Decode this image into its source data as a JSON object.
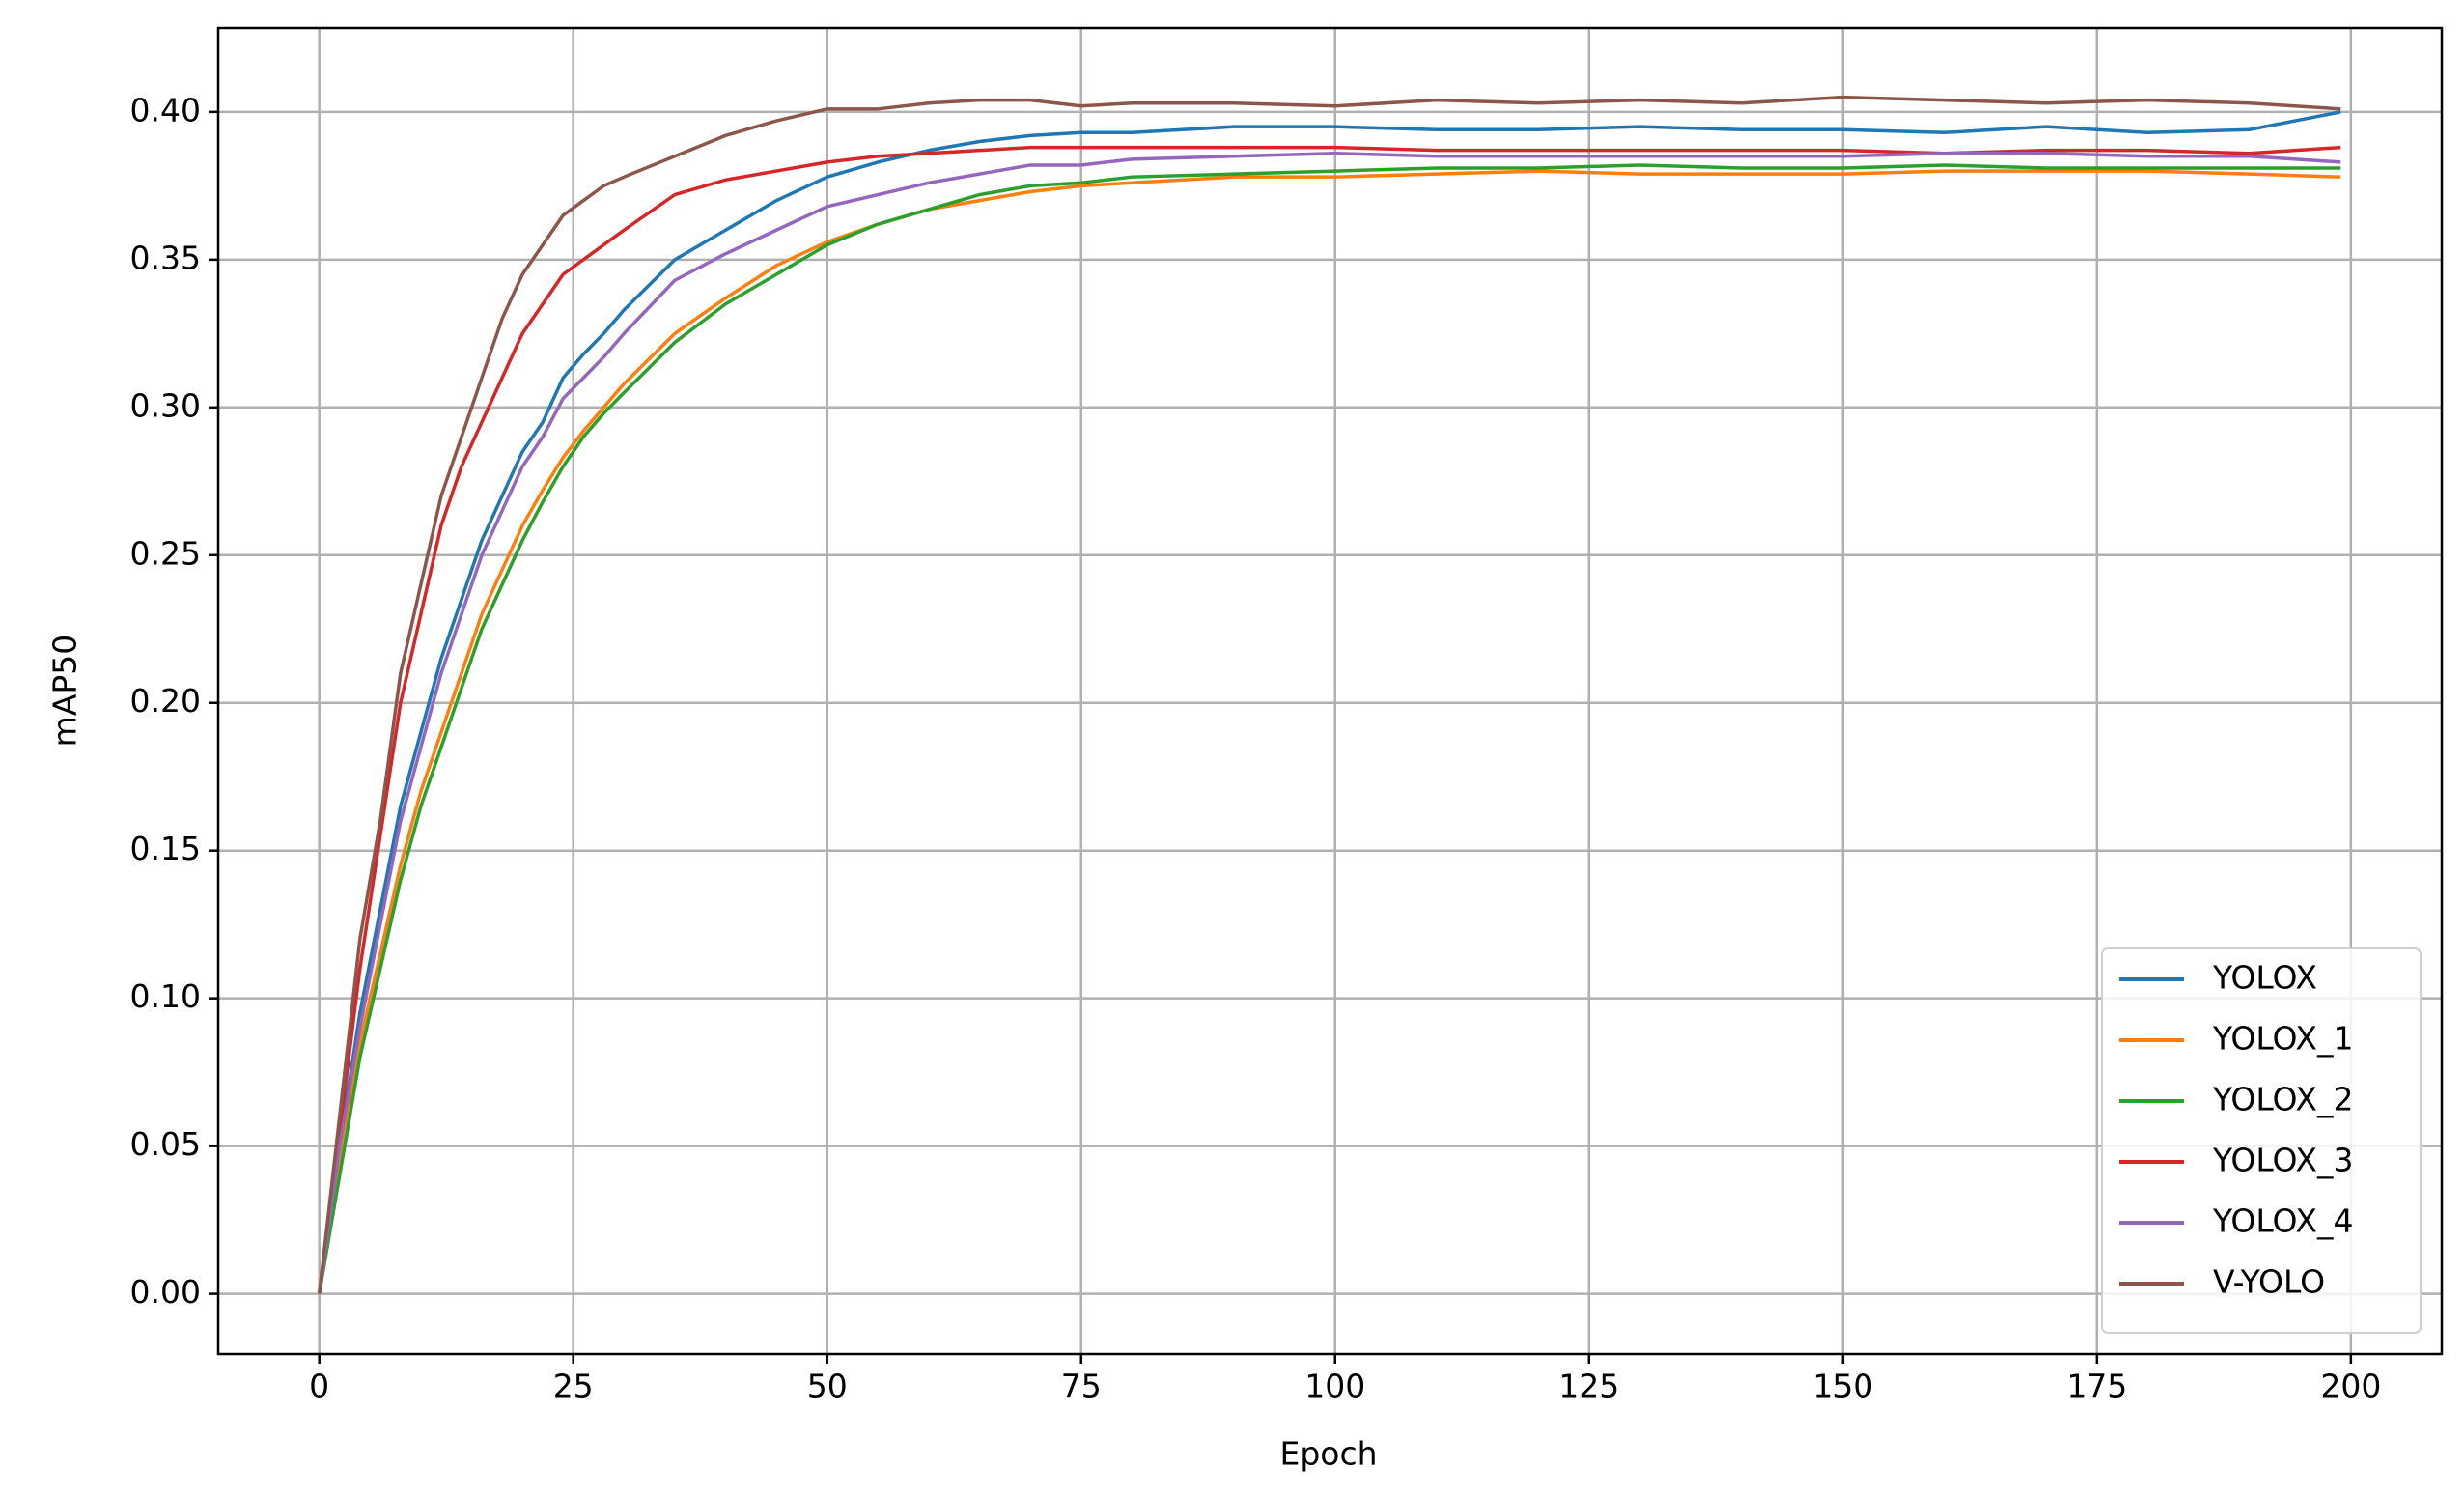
{
  "chart_data": {
    "type": "line",
    "x_label": "Epoch",
    "y_label": "mAP50",
    "x": [
      0,
      2,
      4,
      6,
      8,
      10,
      12,
      14,
      16,
      18,
      20,
      22,
      24,
      26,
      28,
      30,
      35,
      40,
      45,
      50,
      55,
      60,
      65,
      70,
      75,
      80,
      90,
      100,
      110,
      120,
      130,
      140,
      150,
      160,
      170,
      180,
      190,
      199
    ],
    "series": [
      {
        "name": "YOLOX",
        "color": "#1f77b4",
        "values": [
          0,
          0.05,
          0.095,
          0.13,
          0.165,
          0.19,
          0.215,
          0.235,
          0.255,
          0.27,
          0.285,
          0.295,
          0.31,
          0.318,
          0.325,
          0.333,
          0.35,
          0.36,
          0.37,
          0.378,
          0.383,
          0.387,
          0.39,
          0.392,
          0.393,
          0.393,
          0.395,
          0.395,
          0.394,
          0.394,
          0.395,
          0.394,
          0.394,
          0.393,
          0.395,
          0.393,
          0.394,
          0.4
        ]
      },
      {
        "name": "YOLOX_1",
        "color": "#ff7f0e",
        "values": [
          0,
          0.045,
          0.085,
          0.115,
          0.145,
          0.17,
          0.19,
          0.21,
          0.23,
          0.245,
          0.26,
          0.272,
          0.283,
          0.292,
          0.3,
          0.308,
          0.325,
          0.337,
          0.348,
          0.356,
          0.362,
          0.367,
          0.37,
          0.373,
          0.375,
          0.376,
          0.378,
          0.378,
          0.379,
          0.38,
          0.379,
          0.379,
          0.379,
          0.38,
          0.38,
          0.38,
          0.379,
          0.378
        ]
      },
      {
        "name": "YOLOX_2",
        "color": "#2ca02c",
        "values": [
          0,
          0.04,
          0.08,
          0.11,
          0.14,
          0.165,
          0.185,
          0.205,
          0.225,
          0.24,
          0.255,
          0.268,
          0.28,
          0.29,
          0.298,
          0.305,
          0.322,
          0.335,
          0.345,
          0.355,
          0.362,
          0.367,
          0.372,
          0.375,
          0.376,
          0.378,
          0.379,
          0.38,
          0.381,
          0.381,
          0.382,
          0.381,
          0.381,
          0.382,
          0.381,
          0.381,
          0.381,
          0.381
        ]
      },
      {
        "name": "YOLOX_3",
        "color": "#d62728",
        "values": [
          0,
          0.055,
          0.11,
          0.155,
          0.2,
          0.23,
          0.26,
          0.28,
          0.295,
          0.31,
          0.325,
          0.335,
          0.345,
          0.35,
          0.355,
          0.36,
          0.372,
          0.377,
          0.38,
          0.383,
          0.385,
          0.386,
          0.387,
          0.388,
          0.388,
          0.388,
          0.388,
          0.388,
          0.387,
          0.387,
          0.387,
          0.387,
          0.387,
          0.386,
          0.387,
          0.387,
          0.386,
          0.388
        ]
      },
      {
        "name": "YOLOX_4",
        "color": "#9467bd",
        "values": [
          0,
          0.05,
          0.09,
          0.125,
          0.16,
          0.185,
          0.21,
          0.23,
          0.25,
          0.265,
          0.28,
          0.29,
          0.303,
          0.31,
          0.317,
          0.325,
          0.343,
          0.352,
          0.36,
          0.368,
          0.372,
          0.376,
          0.379,
          0.382,
          0.382,
          0.384,
          0.385,
          0.386,
          0.385,
          0.385,
          0.385,
          0.385,
          0.385,
          0.386,
          0.386,
          0.385,
          0.385,
          0.383
        ]
      },
      {
        "name": "V-YOLO",
        "color": "#8c564b",
        "values": [
          0,
          0.06,
          0.12,
          0.16,
          0.21,
          0.24,
          0.27,
          0.29,
          0.31,
          0.33,
          0.345,
          0.355,
          0.365,
          0.37,
          0.375,
          0.378,
          0.385,
          0.392,
          0.397,
          0.401,
          0.401,
          0.403,
          0.404,
          0.404,
          0.402,
          0.403,
          0.403,
          0.402,
          0.404,
          0.403,
          0.404,
          0.403,
          0.405,
          0.404,
          0.403,
          0.404,
          0.403,
          0.401
        ]
      }
    ],
    "xlim": [
      -9.95,
      208.95
    ],
    "ylim": [
      -0.0204,
      0.4284
    ],
    "xticks": [
      0,
      25,
      50,
      75,
      100,
      125,
      150,
      175,
      200
    ],
    "yticks": [
      {
        "value": 0,
        "label": "0.00"
      },
      0.05,
      {
        "value": 0.1,
        "label": "0.10"
      },
      0.15,
      {
        "value": 0.2,
        "label": "0.20"
      },
      0.25,
      {
        "value": 0.3,
        "label": "0.30"
      },
      0.35,
      {
        "value": 0.4,
        "label": "0.40"
      }
    ],
    "grid": true,
    "legend": "lower right"
  }
}
